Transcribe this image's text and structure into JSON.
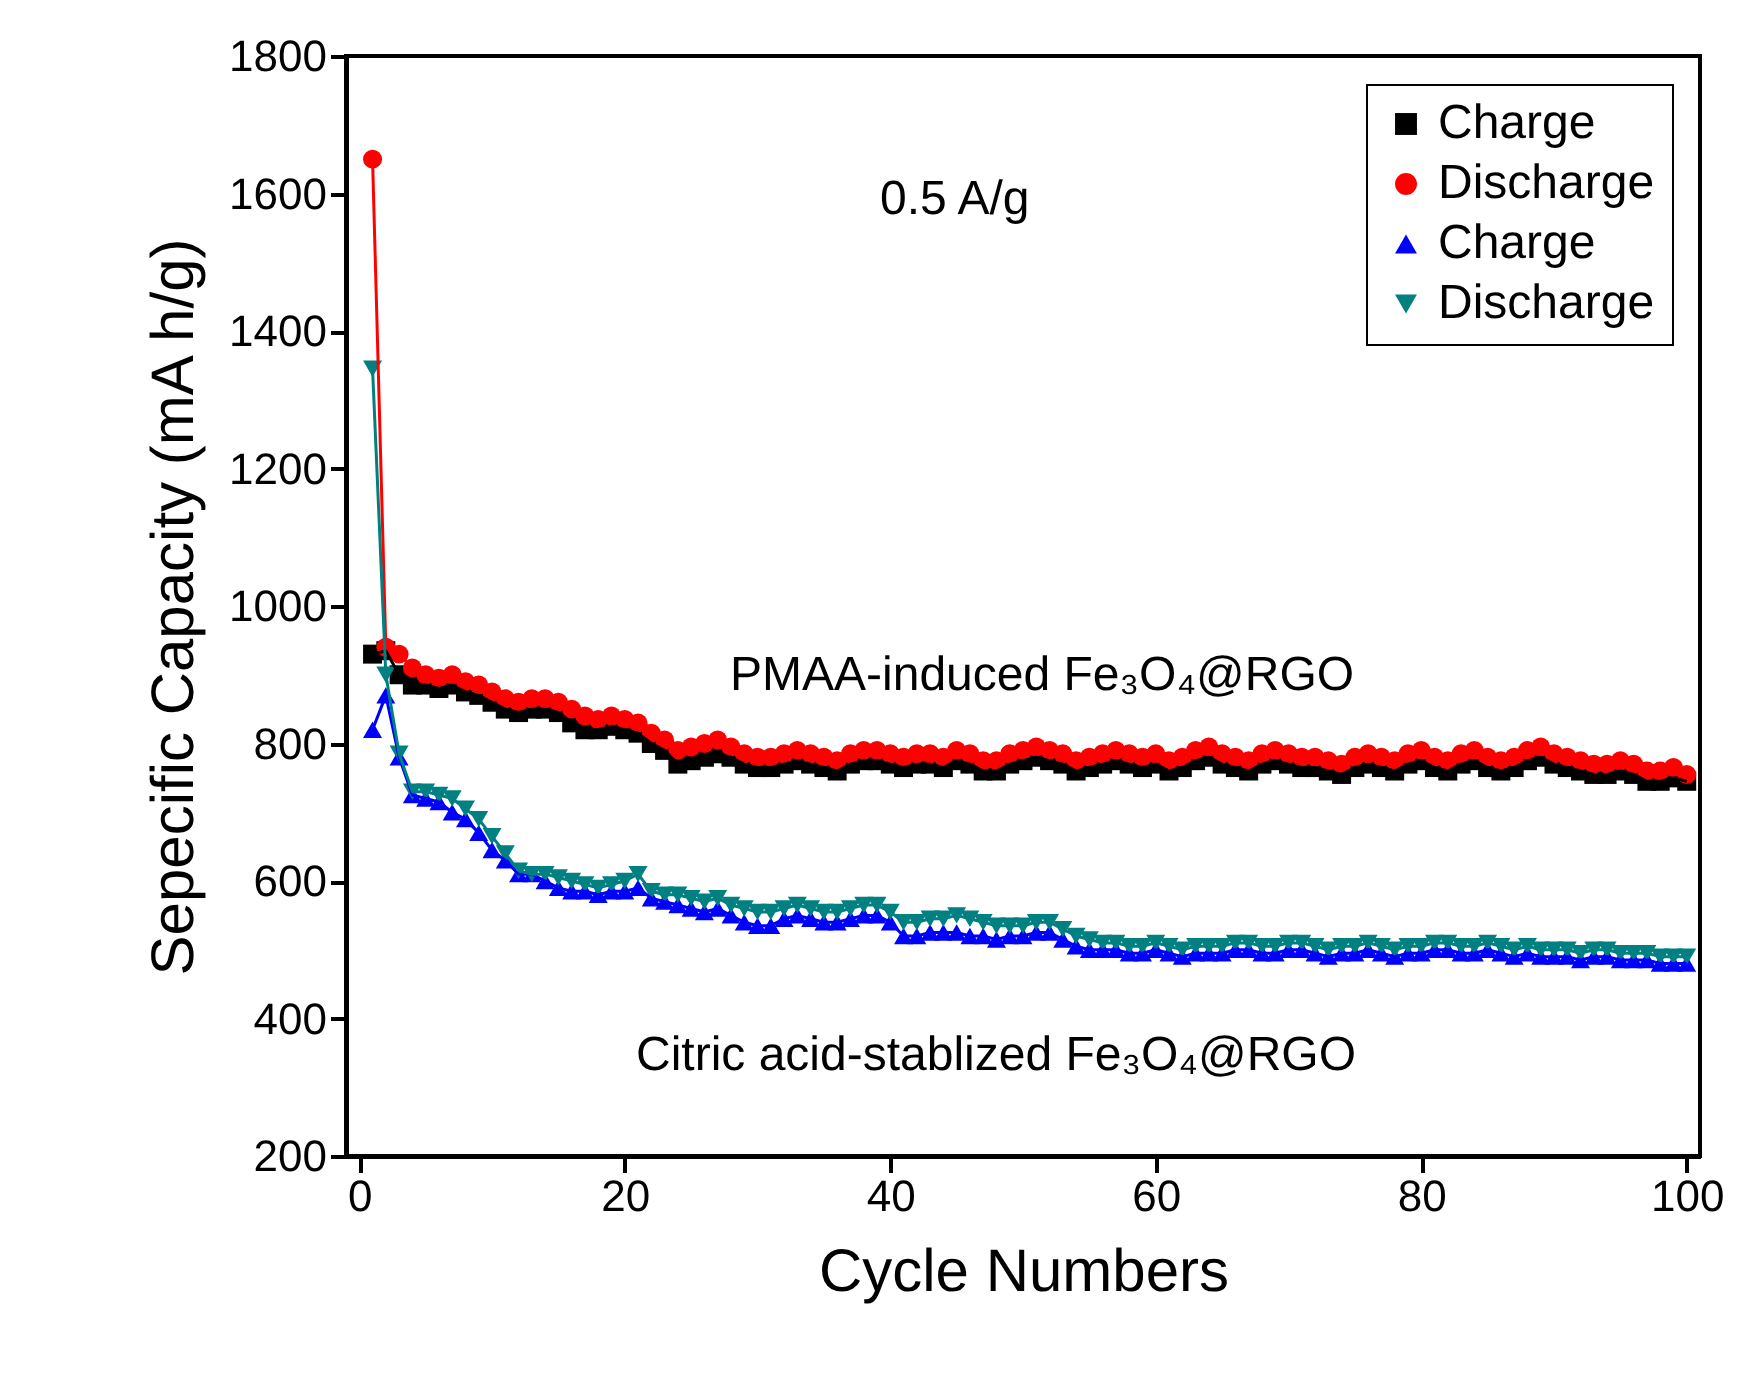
{
  "chart_data": {
    "type": "line",
    "xlabel": "Cycle Numbers",
    "ylabel": "Sepecific Capacity (mA h/g)",
    "annotations": [
      "0.5 A/g",
      "PMAA-induced Fe₃O₄@RGO",
      "Citric acid-stablized Fe₃O₄@RGO"
    ],
    "x": [
      1,
      2,
      3,
      4,
      5,
      6,
      7,
      8,
      9,
      10,
      11,
      12,
      13,
      14,
      15,
      16,
      17,
      18,
      19,
      20,
      21,
      22,
      23,
      24,
      25,
      26,
      27,
      28,
      29,
      30,
      31,
      32,
      33,
      34,
      35,
      36,
      37,
      38,
      39,
      40,
      41,
      42,
      43,
      44,
      45,
      46,
      47,
      48,
      49,
      50,
      51,
      52,
      53,
      54,
      55,
      56,
      57,
      58,
      59,
      60,
      61,
      62,
      63,
      64,
      65,
      66,
      67,
      68,
      69,
      70,
      71,
      72,
      73,
      74,
      75,
      76,
      77,
      78,
      79,
      80,
      81,
      82,
      83,
      84,
      85,
      86,
      87,
      88,
      89,
      90,
      91,
      92,
      93,
      94,
      95,
      96,
      97,
      98,
      99,
      100
    ],
    "series": [
      {
        "name": "Charge",
        "color": "#000000",
        "marker": "square",
        "values": [
          930,
          935,
          900,
          885,
          885,
          880,
          885,
          875,
          870,
          860,
          850,
          845,
          850,
          850,
          845,
          830,
          820,
          820,
          825,
          820,
          815,
          800,
          790,
          770,
          775,
          780,
          785,
          780,
          770,
          765,
          765,
          770,
          775,
          770,
          765,
          760,
          770,
          775,
          775,
          770,
          765,
          770,
          770,
          765,
          775,
          770,
          760,
          760,
          770,
          775,
          780,
          775,
          770,
          760,
          765,
          770,
          775,
          770,
          765,
          770,
          760,
          765,
          775,
          780,
          770,
          765,
          760,
          770,
          775,
          770,
          765,
          765,
          760,
          755,
          765,
          770,
          765,
          760,
          770,
          775,
          765,
          760,
          770,
          775,
          765,
          760,
          765,
          775,
          780,
          770,
          765,
          760,
          755,
          755,
          760,
          755,
          745,
          745,
          750,
          745
        ]
      },
      {
        "name": "Discharge",
        "color": "#ff0000",
        "marker": "circle",
        "values": [
          1650,
          940,
          930,
          910,
          900,
          895,
          900,
          890,
          885,
          875,
          865,
          860,
          865,
          865,
          860,
          850,
          840,
          835,
          840,
          835,
          830,
          815,
          805,
          790,
          795,
          800,
          805,
          795,
          785,
          780,
          780,
          785,
          790,
          785,
          780,
          775,
          785,
          790,
          790,
          785,
          780,
          785,
          785,
          780,
          790,
          785,
          775,
          775,
          785,
          790,
          795,
          790,
          785,
          775,
          780,
          785,
          790,
          785,
          780,
          785,
          775,
          780,
          790,
          795,
          785,
          780,
          775,
          785,
          790,
          785,
          780,
          780,
          775,
          770,
          780,
          785,
          780,
          775,
          785,
          790,
          780,
          775,
          785,
          790,
          780,
          775,
          780,
          790,
          795,
          785,
          780,
          775,
          770,
          770,
          775,
          770,
          760,
          760,
          765,
          755
        ]
      },
      {
        "name": "Charge",
        "color": "#0000ff",
        "marker": "triangle",
        "values": [
          820,
          870,
          780,
          725,
          720,
          715,
          700,
          690,
          670,
          645,
          630,
          610,
          610,
          600,
          590,
          585,
          585,
          580,
          585,
          585,
          590,
          575,
          570,
          565,
          560,
          555,
          560,
          550,
          540,
          535,
          535,
          545,
          550,
          545,
          540,
          540,
          545,
          550,
          550,
          540,
          520,
          520,
          525,
          525,
          525,
          520,
          520,
          515,
          520,
          520,
          525,
          525,
          515,
          505,
          500,
          500,
          500,
          495,
          495,
          500,
          495,
          490,
          495,
          495,
          495,
          500,
          500,
          495,
          495,
          500,
          500,
          495,
          490,
          495,
          495,
          500,
          495,
          490,
          495,
          495,
          500,
          500,
          495,
          495,
          500,
          495,
          490,
          495,
          490,
          490,
          490,
          485,
          490,
          490,
          485,
          485,
          485,
          480,
          480,
          480
        ]
      },
      {
        "name": "Discharge",
        "color": "#008080",
        "marker": "triangle-down",
        "values": [
          1345,
          900,
          785,
          730,
          730,
          725,
          720,
          705,
          690,
          665,
          640,
          615,
          610,
          610,
          605,
          600,
          595,
          590,
          595,
          600,
          610,
          585,
          580,
          580,
          575,
          570,
          575,
          565,
          560,
          555,
          555,
          560,
          565,
          560,
          555,
          555,
          560,
          565,
          565,
          555,
          540,
          540,
          545,
          545,
          550,
          545,
          540,
          535,
          535,
          535,
          540,
          540,
          530,
          520,
          515,
          510,
          510,
          505,
          505,
          510,
          505,
          500,
          505,
          505,
          505,
          510,
          510,
          505,
          505,
          510,
          510,
          505,
          500,
          505,
          505,
          510,
          505,
          500,
          505,
          505,
          510,
          510,
          505,
          505,
          510,
          505,
          500,
          505,
          500,
          500,
          500,
          495,
          500,
          500,
          495,
          495,
          495,
          490,
          490,
          490
        ]
      }
    ],
    "xlim": [
      -1,
      101
    ],
    "xticks": [
      0,
      20,
      40,
      60,
      80,
      100
    ],
    "ylim": [
      200,
      1800
    ],
    "yticks": [
      200,
      400,
      600,
      800,
      1000,
      1200,
      1400,
      1600,
      1800
    ],
    "legend": "top right",
    "line_style": "solid"
  }
}
